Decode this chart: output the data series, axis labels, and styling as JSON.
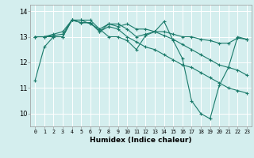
{
  "xlabel": "Humidex (Indice chaleur)",
  "background_color": "#d4eeee",
  "grid_color": "#ffffff",
  "line_color": "#1a7a6a",
  "xlim": [
    -0.5,
    23.5
  ],
  "ylim": [
    9.5,
    14.25
  ],
  "yticks": [
    10,
    11,
    12,
    13,
    14
  ],
  "xticks": [
    0,
    1,
    2,
    3,
    4,
    5,
    6,
    7,
    8,
    9,
    10,
    11,
    12,
    13,
    14,
    15,
    16,
    17,
    18,
    19,
    20,
    21,
    22,
    23
  ],
  "series": [
    [
      11.3,
      12.6,
      13.0,
      13.0,
      13.65,
      13.65,
      13.5,
      13.3,
      13.0,
      13.0,
      12.85,
      12.5,
      13.05,
      13.2,
      13.6,
      12.85,
      12.15,
      10.5,
      10.0,
      9.8,
      11.1,
      11.8,
      13.0,
      12.9
    ],
    [
      13.0,
      13.0,
      13.0,
      13.0,
      13.65,
      13.65,
      13.65,
      13.3,
      13.5,
      13.5,
      13.3,
      13.0,
      13.1,
      13.2,
      13.2,
      13.1,
      13.0,
      13.0,
      12.9,
      12.85,
      12.75,
      12.75,
      12.95,
      12.9
    ],
    [
      13.0,
      13.0,
      13.05,
      13.1,
      13.65,
      13.55,
      13.55,
      13.2,
      13.5,
      13.4,
      13.5,
      13.3,
      13.3,
      13.2,
      13.05,
      12.9,
      12.7,
      12.5,
      12.3,
      12.1,
      11.9,
      11.8,
      11.7,
      11.5
    ],
    [
      13.0,
      13.0,
      13.1,
      13.2,
      13.65,
      13.55,
      13.55,
      13.2,
      13.4,
      13.3,
      13.0,
      12.8,
      12.6,
      12.5,
      12.3,
      12.1,
      11.9,
      11.8,
      11.6,
      11.4,
      11.2,
      11.0,
      10.9,
      10.8
    ]
  ]
}
